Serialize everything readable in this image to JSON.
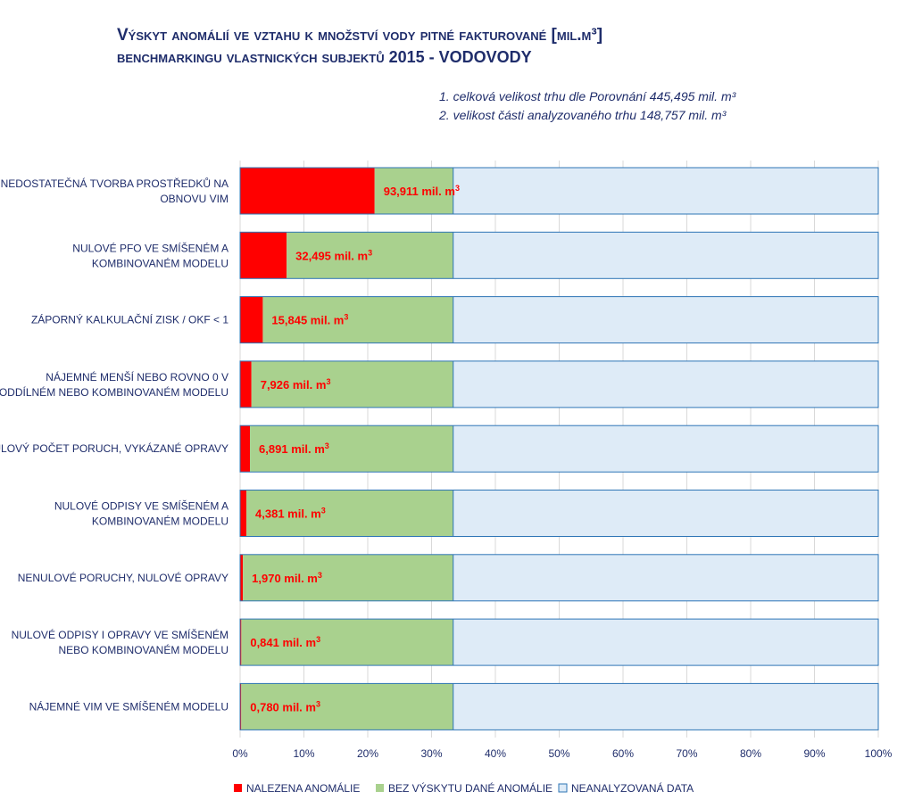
{
  "header": {
    "title_line1": "Výskyt anomálií ve vztahu k množství  vody pitné fakturované [mil.m³]",
    "title_line2": "benchmarkingu vlastnických subjektů 2015 - VODOVODY",
    "note1": "1. celková velikost trhu dle Porovnání 445,495 mil. m³",
    "note2": "2. velikost části analyzovaného trhu 148,757 mil. m³"
  },
  "chart_data": {
    "type": "bar",
    "orientation": "horizontal",
    "stacked": "percent",
    "categories": [
      [
        "NEDOSTATEČNÁ TVORBA PROSTŘEDKŮ NA",
        "OBNOVU VIM"
      ],
      [
        "NULOVÉ PFO VE SMÍŠENÉM A",
        "KOMBINOVANÉM MODELU"
      ],
      [
        "ZÁPORNÝ KALKULAČNÍ ZISK / OKF < 1"
      ],
      [
        "NÁJEMNÉ MENŠÍ NEBO ROVNO 0 V",
        "ODDÍLNÉM NEBO KOMBINOVANÉM MODELU"
      ],
      [
        "NULOVÝ POČET PORUCH, VYKÁZANÉ OPRAVY"
      ],
      [
        "NULOVÉ ODPISY VE SMÍŠENÉM A",
        "KOMBINOVANÉM MODELU"
      ],
      [
        "NENULOVÉ PORUCHY, NULOVÉ OPRAVY"
      ],
      [
        "NULOVÉ ODPISY I OPRAVY VE SMÍŠENÉM",
        "NEBO KOMBINOVANÉM MODELU"
      ],
      [
        "NÁJEMNÉ VIM VE SMÍŠENÉM MODELU"
      ]
    ],
    "series": [
      {
        "name": "NALEZENA ANOMÁLIE",
        "color": "#ff0000",
        "values": [
          93.911,
          32.495,
          15.845,
          7.926,
          6.891,
          4.381,
          1.97,
          0.841,
          0.78
        ]
      },
      {
        "name": "BEZ VÝSKYTU DANÉ ANOMÁLIE",
        "color": "#a9d18e",
        "values": [
          54.846,
          116.262,
          132.912,
          140.831,
          141.866,
          144.376,
          146.787,
          147.916,
          147.977
        ]
      },
      {
        "name": "NEANALYZOVANÁ DATA",
        "color": "#deebf7",
        "values": [
          296.738,
          296.738,
          296.738,
          296.738,
          296.738,
          296.738,
          296.738,
          296.738,
          296.738
        ]
      }
    ],
    "data_labels": [
      "93,911 mil. m³",
      "32,495 mil. m³",
      "15,845 mil. m³",
      "7,926 mil. m³",
      "6,891 mil. m³",
      "4,381 mil. m³",
      "1,970 mil. m³",
      "0,841 mil. m³",
      "0,780 mil. m³"
    ],
    "x_ticks": [
      "0%",
      "10%",
      "20%",
      "30%",
      "40%",
      "50%",
      "60%",
      "70%",
      "80%",
      "90%",
      "100%"
    ],
    "xlim": [
      0,
      100
    ],
    "grid": true,
    "legend_position": "bottom",
    "border_color": "#2e75b6",
    "label_color": "#ff0000",
    "text_color": "#1f2d6b"
  }
}
